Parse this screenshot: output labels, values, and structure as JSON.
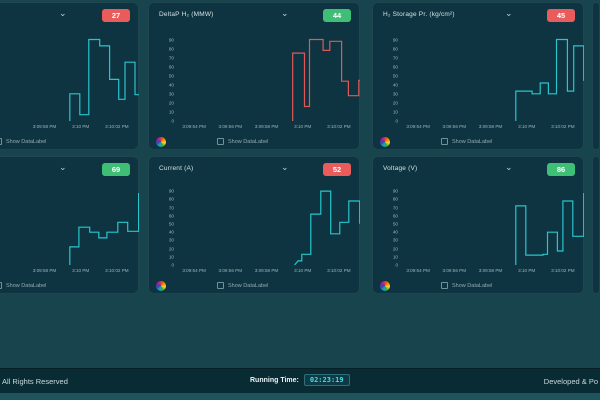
{
  "icons": {
    "chevron_down": "⌄",
    "colorwheel": "color-wheel",
    "checkbox": "unchecked"
  },
  "controls": {
    "show_datalabel_label": "Show DataLabel"
  },
  "colors": {
    "page_bg": "#17444d",
    "panel_bg": "#0d3440",
    "footer_bg": "#092b33",
    "badge_red": "#ea5b5b",
    "badge_green": "#3fbf76",
    "line_teal": "#29c5cc",
    "line_red": "#e25757",
    "running_time_text": "#3ce1e9"
  },
  "footer": {
    "left_text": "All Rights Reserved",
    "running_time_label": "Running Time:",
    "running_time_value": "02:23:19",
    "right_text": "Developed & Po"
  },
  "axis": {
    "y_ticks": [
      90,
      80,
      70,
      60,
      50,
      40,
      30,
      20,
      10,
      0
    ],
    "y_max": 95,
    "x_domain_sec": 10.5,
    "x_ticks": [
      {
        "label": "3:09:54 PM",
        "sec": 1
      },
      {
        "label": "3:09:56 PM",
        "sec": 3
      },
      {
        "label": "3:09:58 PM",
        "sec": 5
      },
      {
        "label": "3:10 PM",
        "sec": 7
      },
      {
        "label": "3:10:02 PM",
        "sec": 9
      }
    ]
  },
  "panels": [
    {
      "name": "panel-top-left",
      "title": "",
      "badge": "27",
      "badge_color": "#ea5b5b",
      "line_color": "#29c5cc",
      "col": 0,
      "row": 0,
      "bare": false,
      "chart_type": "step-line",
      "series": [
        [
          6.4,
          0
        ],
        [
          6.4,
          30
        ],
        [
          6.95,
          30
        ],
        [
          6.95,
          7
        ],
        [
          7.45,
          7
        ],
        [
          7.45,
          90
        ],
        [
          8.05,
          90
        ],
        [
          8.05,
          83
        ],
        [
          8.6,
          83
        ],
        [
          8.6,
          46
        ],
        [
          9.1,
          46
        ],
        [
          9.1,
          24
        ],
        [
          9.45,
          24
        ],
        [
          9.45,
          65
        ],
        [
          10.0,
          65
        ],
        [
          10.0,
          29
        ],
        [
          10.45,
          29
        ]
      ]
    },
    {
      "name": "panel-deltap-h2",
      "title": "DeltaP H₂ (MMW)",
      "badge": "44",
      "badge_color": "#3fbf76",
      "line_color": "#e25757",
      "col": 1,
      "row": 0,
      "bare": false,
      "chart_type": "step-line",
      "series": [
        [
          6.45,
          0
        ],
        [
          6.45,
          75
        ],
        [
          7.1,
          75
        ],
        [
          7.1,
          16
        ],
        [
          7.38,
          16
        ],
        [
          7.38,
          90
        ],
        [
          8.13,
          90
        ],
        [
          8.13,
          78
        ],
        [
          8.5,
          78
        ],
        [
          8.5,
          88
        ],
        [
          9.15,
          88
        ],
        [
          9.15,
          44
        ],
        [
          9.53,
          44
        ],
        [
          9.53,
          28
        ],
        [
          10.1,
          28
        ],
        [
          10.1,
          45
        ],
        [
          10.5,
          45
        ]
      ]
    },
    {
      "name": "panel-h2-storage-pr",
      "title": "H₂ Storage Pr. (kg/cm²)",
      "badge": "45",
      "badge_color": "#ea5b5b",
      "line_color": "#29c5cc",
      "col": 2,
      "row": 0,
      "bare": false,
      "chart_type": "step-line",
      "series": [
        [
          6.4,
          0
        ],
        [
          6.4,
          33
        ],
        [
          7.3,
          33
        ],
        [
          7.3,
          30
        ],
        [
          7.75,
          30
        ],
        [
          7.75,
          42
        ],
        [
          8.2,
          42
        ],
        [
          8.2,
          30
        ],
        [
          8.65,
          30
        ],
        [
          8.65,
          90
        ],
        [
          9.25,
          90
        ],
        [
          9.25,
          33
        ],
        [
          9.6,
          33
        ],
        [
          9.6,
          83
        ],
        [
          10.15,
          83
        ],
        [
          10.15,
          45
        ],
        [
          10.5,
          45
        ]
      ]
    },
    {
      "name": "panel-partial-right-top",
      "title": "",
      "badge": null,
      "line_color": "#29c5cc",
      "col": 3,
      "row": 0,
      "bare": true,
      "chart_type": "step-line",
      "series": []
    },
    {
      "name": "panel-bottom-left",
      "title": "",
      "badge": "69",
      "badge_color": "#3fbf76",
      "line_color": "#29c5cc",
      "col": 0,
      "row": 1,
      "bare": false,
      "chart_type": "step-line",
      "series": [
        [
          6.4,
          0
        ],
        [
          6.4,
          22
        ],
        [
          6.9,
          22
        ],
        [
          6.9,
          46
        ],
        [
          7.5,
          46
        ],
        [
          7.5,
          40
        ],
        [
          8.0,
          40
        ],
        [
          8.0,
          33
        ],
        [
          8.45,
          33
        ],
        [
          8.45,
          40
        ],
        [
          9.05,
          40
        ],
        [
          9.05,
          52
        ],
        [
          9.6,
          52
        ],
        [
          9.6,
          41
        ],
        [
          10.2,
          41
        ],
        [
          10.2,
          87
        ],
        [
          10.45,
          87
        ]
      ]
    },
    {
      "name": "panel-current",
      "title": "Current (A)",
      "badge": "52",
      "badge_color": "#ea5b5b",
      "line_color": "#29c5cc",
      "col": 1,
      "row": 1,
      "bare": false,
      "chart_type": "step-line",
      "series": [
        [
          6.55,
          0
        ],
        [
          6.75,
          5
        ],
        [
          6.95,
          5
        ],
        [
          6.95,
          13
        ],
        [
          7.45,
          13
        ],
        [
          7.45,
          62
        ],
        [
          8.0,
          62
        ],
        [
          8.0,
          90
        ],
        [
          8.55,
          90
        ],
        [
          8.55,
          38
        ],
        [
          9.05,
          38
        ],
        [
          9.05,
          52
        ],
        [
          9.55,
          52
        ],
        [
          9.55,
          78
        ],
        [
          10.15,
          78
        ],
        [
          10.15,
          51
        ],
        [
          10.45,
          51
        ]
      ]
    },
    {
      "name": "panel-voltage",
      "title": "Voltage (V)",
      "badge": "86",
      "badge_color": "#3fbf76",
      "line_color": "#29c5cc",
      "col": 2,
      "row": 1,
      "bare": false,
      "chart_type": "step-line",
      "series": [
        [
          6.4,
          0
        ],
        [
          6.4,
          72
        ],
        [
          6.95,
          72
        ],
        [
          6.95,
          12
        ],
        [
          7.9,
          12
        ],
        [
          7.9,
          13
        ],
        [
          8.15,
          13
        ],
        [
          8.15,
          40
        ],
        [
          8.7,
          40
        ],
        [
          8.7,
          17
        ],
        [
          9.0,
          17
        ],
        [
          9.0,
          78
        ],
        [
          9.55,
          78
        ],
        [
          9.55,
          35
        ],
        [
          10.15,
          35
        ],
        [
          10.15,
          87
        ],
        [
          10.45,
          87
        ]
      ]
    },
    {
      "name": "panel-partial-right-bottom",
      "title": "",
      "badge": null,
      "line_color": "#29c5cc",
      "col": 3,
      "row": 1,
      "bare": true,
      "chart_type": "step-line",
      "series": []
    }
  ]
}
